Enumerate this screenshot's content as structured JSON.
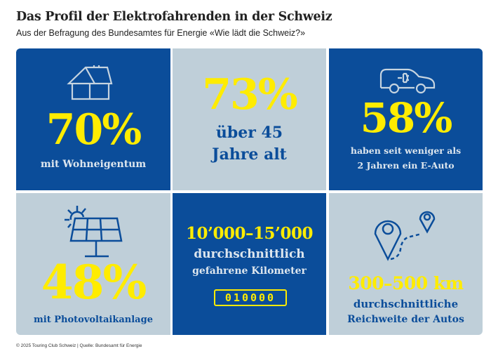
{
  "header": {
    "title": "Das Profil der Elektrofahrenden in der Schweiz",
    "subtitle": "Aus der Befragung des Bundesamtes für Energie «Wie lädt die Schweiz?»"
  },
  "colors": {
    "blue": "#0b4d9a",
    "grey": "#bfcfd9",
    "yellow": "#ffec00"
  },
  "tiles": [
    {
      "icon": "house-icon",
      "value": "70%",
      "label": "mit Wohneigentum"
    },
    {
      "value": "73%",
      "label_line1": "über 45",
      "label_line2": "Jahre alt"
    },
    {
      "icon": "electric-car-icon",
      "value": "58%",
      "label_line1": "haben seit weniger als",
      "label_line2": "2 Jahren ein E-Auto"
    },
    {
      "icon": "solar-panel-icon",
      "value": "48%",
      "label": "mit Photovoltaikanlage"
    },
    {
      "value": "10’000–15’000",
      "label_line1": "durchschnittlich",
      "label_line2": "gefahrene Kilometer",
      "odometer": "010000"
    },
    {
      "icon": "map-route-icon",
      "value": "300–500 km",
      "label_line1": "durchschnittliche",
      "label_line2": "Reichweite der Autos"
    }
  ],
  "footer": "© 2025 Touring Club Schweiz | Quelle: Bundesamt für Energie"
}
